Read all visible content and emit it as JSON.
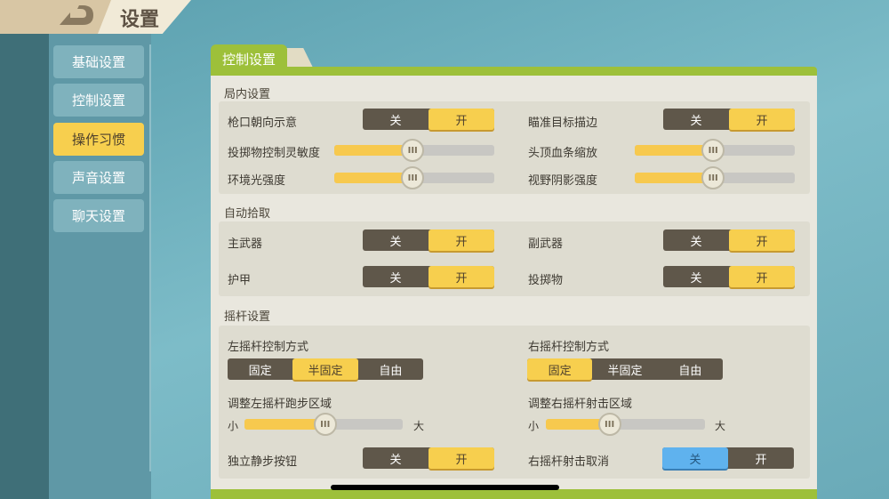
{
  "header": {
    "title": "设置",
    "back_icon": "back-arrow-icon"
  },
  "sidebar": {
    "items": [
      {
        "label": "基础设置",
        "active": false
      },
      {
        "label": "控制设置",
        "active": false
      },
      {
        "label": "操作习惯",
        "active": true
      },
      {
        "label": "声音设置",
        "active": false
      },
      {
        "label": "聊天设置",
        "active": false
      }
    ]
  },
  "tab": {
    "label": "控制设置"
  },
  "colors": {
    "accent_yellow": "#f7cf4e",
    "tab_green": "#9dc03a",
    "toggle_dark": "#5f574a",
    "toggle_blue": "#5fb2ee"
  },
  "sections": {
    "match": {
      "title": "局内设置",
      "muzzle": {
        "label": "枪口朝向示意",
        "off": "关",
        "on": "开",
        "value": "开"
      },
      "aim_outline": {
        "label": "瞄准目标描边",
        "off": "关",
        "on": "开",
        "value": "开"
      },
      "throw_sens": {
        "label": "投掷物控制灵敏度",
        "value_pct": 49
      },
      "hp_bar_scale": {
        "label": "头顶血条缩放",
        "value_pct": 49
      },
      "ambient": {
        "label": "环境光强度",
        "value_pct": 49
      },
      "view_shadow": {
        "label": "视野阴影强度",
        "value_pct": 49
      }
    },
    "pickup": {
      "title": "自动拾取",
      "primary": {
        "label": "主武器",
        "off": "关",
        "on": "开",
        "value": "开"
      },
      "secondary": {
        "label": "副武器",
        "off": "关",
        "on": "开",
        "value": "开"
      },
      "armor": {
        "label": "护甲",
        "off": "关",
        "on": "开",
        "value": "开"
      },
      "throwable": {
        "label": "投掷物",
        "off": "关",
        "on": "开",
        "value": "开"
      }
    },
    "joystick": {
      "title": "摇杆设置",
      "left_mode": {
        "label": "左摇杆控制方式",
        "options": [
          "固定",
          "半固定",
          "自由"
        ],
        "value": "半固定"
      },
      "right_mode": {
        "label": "右摇杆控制方式",
        "options": [
          "固定",
          "半固定",
          "自由"
        ],
        "value": "固定"
      },
      "left_area": {
        "label": "调整左摇杆跑步区域",
        "min": "小",
        "max": "大",
        "value_pct": 51
      },
      "right_area": {
        "label": "调整右摇杆射击区域",
        "min": "小",
        "max": "大",
        "value_pct": 40
      },
      "walk_btn": {
        "label": "独立静步按钮",
        "off": "关",
        "on": "开",
        "value": "开"
      },
      "fire_cancel": {
        "label": "右摇杆射击取消",
        "off": "关",
        "on": "开",
        "value": "关"
      }
    }
  },
  "slider_knob_glyph": "III"
}
